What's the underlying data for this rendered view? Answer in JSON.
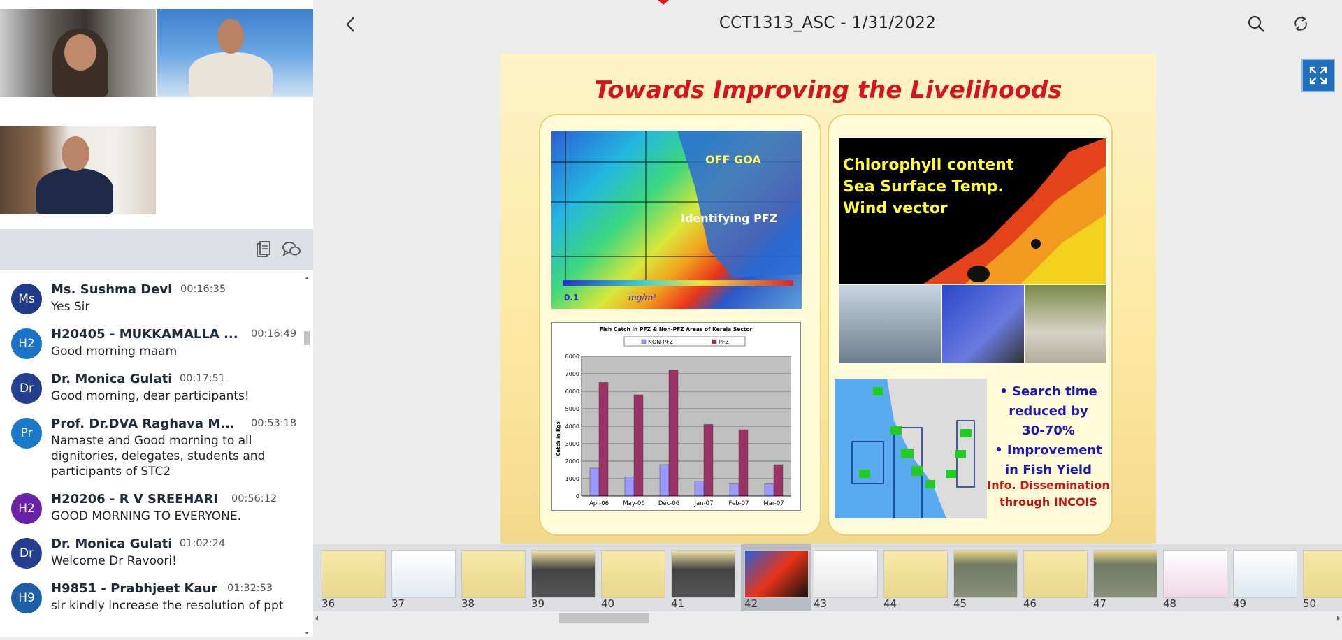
{
  "header": {
    "title": "CCT1313_ASC - 1/31/2022",
    "back_icon": "chevron-left-icon",
    "search_icon": "search-icon",
    "sync_icon": "sync-icon",
    "fullscreen_icon": "fullscreen-icon"
  },
  "chat": {
    "toolbar_icons": [
      "clipboard-icon",
      "chat-bubbles-icon"
    ],
    "messages": [
      {
        "initials": "Ms",
        "name": "Ms. Sushma Devi",
        "time": "00:16:35",
        "text": "Yes Sir",
        "color": "#1f3a8a"
      },
      {
        "initials": "H2",
        "name": "H20405 - MUKKAMALLA ...",
        "time": "00:16:49",
        "text": "Good morning maam",
        "color": "#1a73c9"
      },
      {
        "initials": "Dr",
        "name": "Dr. Monica Gulati",
        "time": "00:17:51",
        "text": "Good morning, dear participants!",
        "color": "#243f8f"
      },
      {
        "initials": "Pr",
        "name": "Prof. Dr.DVA Raghava M...",
        "time": "00:53:18",
        "text": "Namaste and Good morning to all dignitories, delegates, students and participants of STC2",
        "color": "#1a7ac9"
      },
      {
        "initials": "H2",
        "name": "H20206 - R V SREEHARI",
        "time": "00:56:12",
        "text": "GOOD MORNING TO EVERYONE.",
        "color": "#6a23a8"
      },
      {
        "initials": "Dr",
        "name": "Dr. Monica Gulati",
        "time": "01:02:24",
        "text": "Welcome Dr Ravoori!",
        "color": "#243f8f"
      },
      {
        "initials": "H9",
        "name": "H9851 - Prabhjeet Kaur",
        "time": "01:32:53",
        "text": "sir kindly increase the resolution of ppt",
        "color": "#1d5fa8"
      }
    ]
  },
  "slide": {
    "title": "Towards Improving the Livelihoods",
    "map_label_1": "OFF GOA",
    "map_label_2": "Identifying PFZ",
    "scale_text": "0.1",
    "scale_unit": "mg/m³",
    "right_text_1": "Chlorophyll content",
    "right_text_2": "Sea Surface Temp.",
    "right_text_3": "Wind vector",
    "bullet_1a": "• Search time",
    "bullet_1b": "reduced by",
    "bullet_1c": "30-70%",
    "bullet_2a": "• Improvement",
    "bullet_2b": "in Fish Yield",
    "info_a": "Info. Dissemination",
    "info_b": "through INCOIS"
  },
  "chart_data": {
    "type": "bar",
    "title": "Fish Catch in PFZ & Non-PFZ Areas of Kerala Sector",
    "ylabel": "Catch in Kgs",
    "xlabel": "",
    "categories": [
      "Apr-06",
      "May-06",
      "Dec-06",
      "Jan-07",
      "Feb-07",
      "Mar-07"
    ],
    "series": [
      {
        "name": "NON-PFZ",
        "values": [
          1600,
          1100,
          1800,
          850,
          700,
          700
        ],
        "color": "#9999ff"
      },
      {
        "name": "PFZ",
        "values": [
          6500,
          5800,
          7200,
          4100,
          3800,
          1800
        ],
        "color": "#993366"
      }
    ],
    "ylim": [
      0,
      8000
    ],
    "yticks": [
      "0",
      "1000",
      "2000",
      "3000",
      "4000",
      "5000",
      "6000",
      "7000",
      "8000"
    ],
    "grid": true,
    "legend": "top"
  },
  "thumbnails": [
    "36",
    "37",
    "38",
    "39",
    "40",
    "41",
    "42",
    "43",
    "44",
    "45",
    "46",
    "47",
    "48",
    "49",
    "50"
  ],
  "thumbnail_selected": "42"
}
